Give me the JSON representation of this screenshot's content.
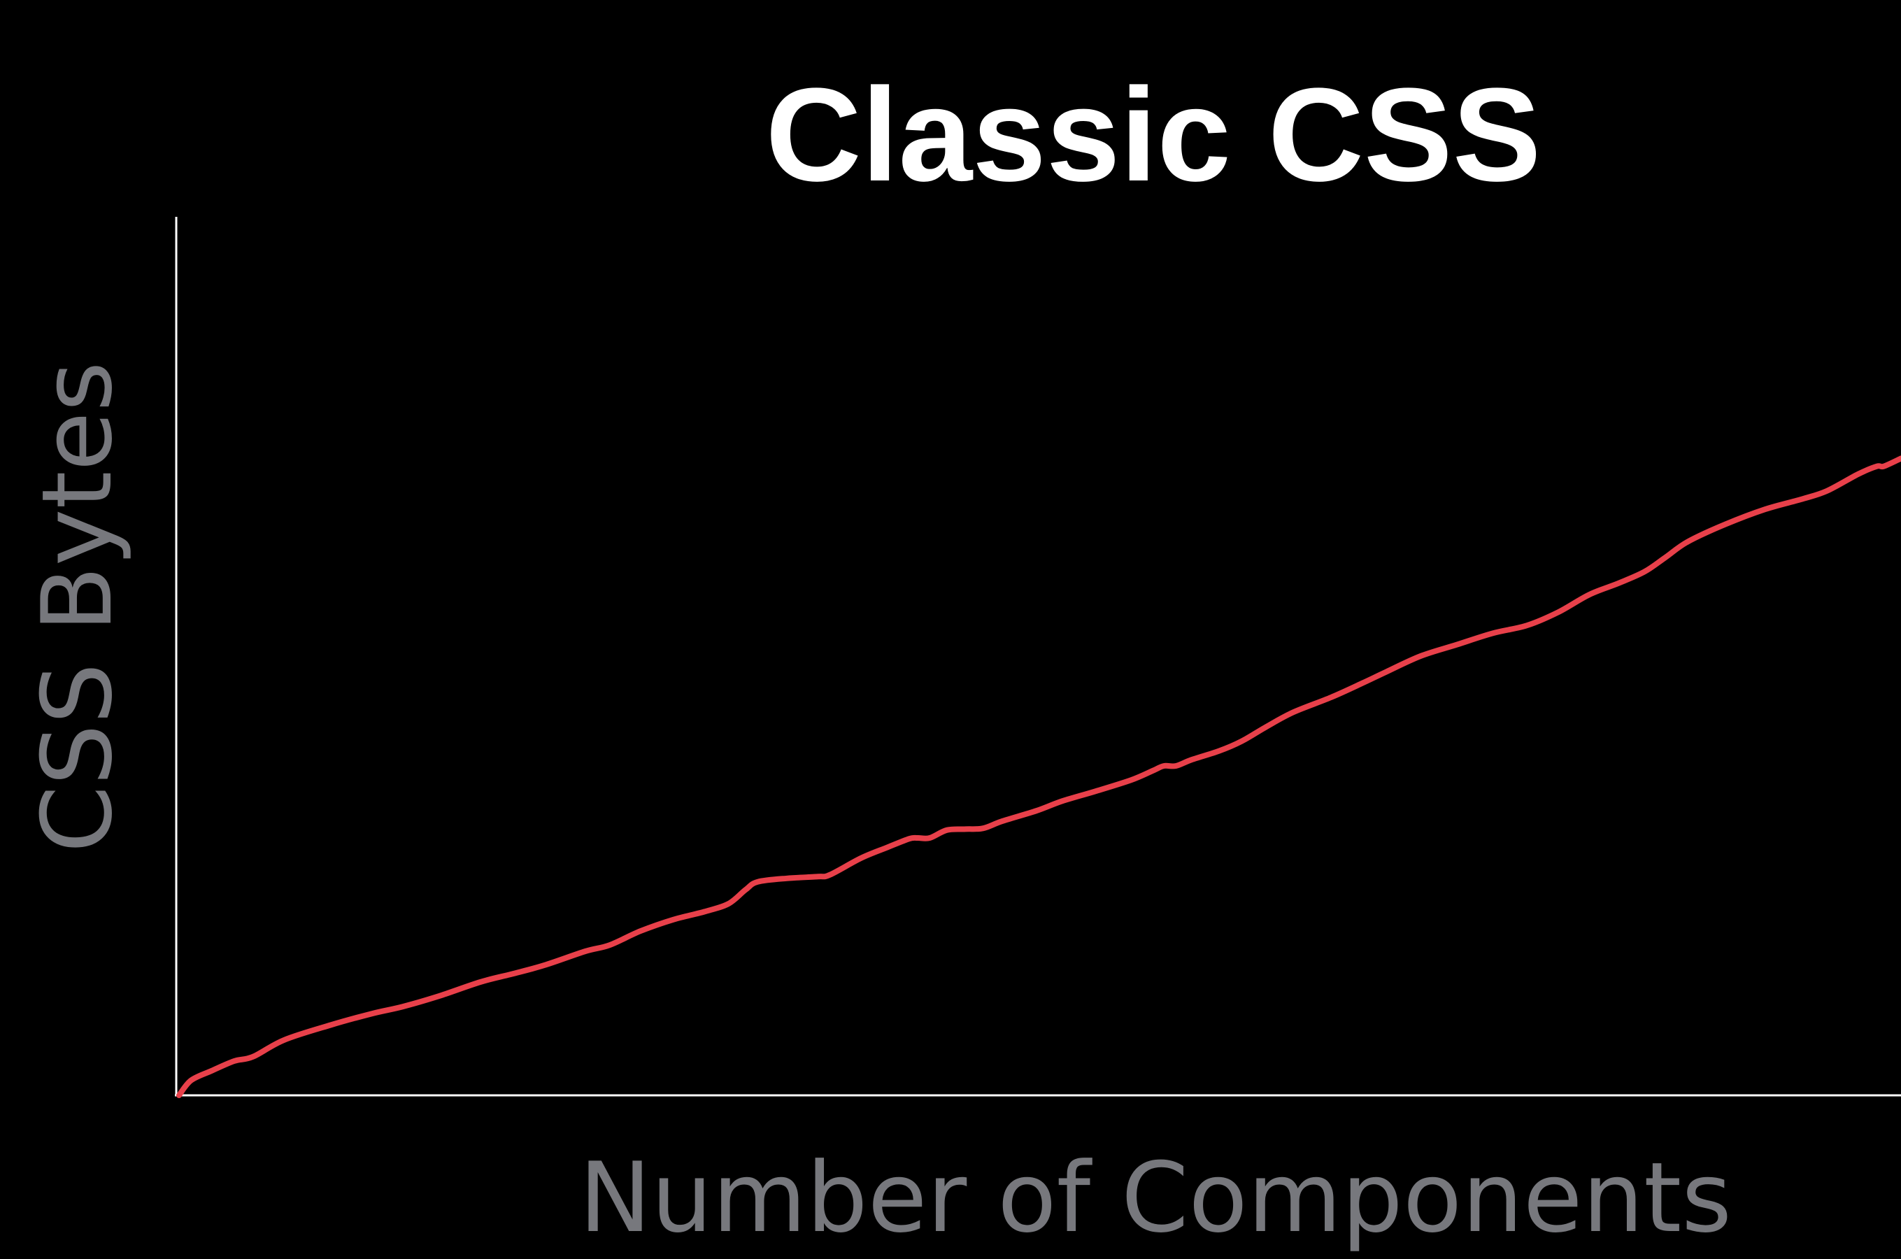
{
  "chart_data": {
    "type": "line",
    "title": "Classic CSS",
    "xlabel": "Number of Components",
    "ylabel": "CSS Bytes",
    "xlim": [
      0,
      100
    ],
    "ylim": [
      0,
      100
    ],
    "grid": false,
    "legend": "none",
    "tick_labels": "none",
    "series": [
      {
        "color": "#e8404a",
        "points": [
          [
            0.0,
            0.0
          ],
          [
            0.7,
            1.7
          ],
          [
            1.9,
            2.8
          ],
          [
            3.2,
            3.9
          ],
          [
            4.3,
            4.4
          ],
          [
            6.1,
            6.3
          ],
          [
            8.8,
            8.0
          ],
          [
            11.2,
            9.3
          ],
          [
            13.0,
            10.1
          ],
          [
            15.1,
            11.3
          ],
          [
            17.5,
            12.9
          ],
          [
            19.3,
            13.8
          ],
          [
            21.2,
            14.8
          ],
          [
            23.6,
            16.4
          ],
          [
            25.0,
            17.1
          ],
          [
            26.8,
            18.7
          ],
          [
            28.7,
            20.0
          ],
          [
            30.5,
            20.9
          ],
          [
            31.9,
            21.8
          ],
          [
            32.9,
            23.4
          ],
          [
            33.6,
            24.3
          ],
          [
            35.3,
            24.7
          ],
          [
            37.1,
            24.9
          ],
          [
            37.8,
            25.1
          ],
          [
            39.6,
            27.0
          ],
          [
            41.1,
            28.2
          ],
          [
            42.4,
            29.2
          ],
          [
            42.9,
            29.3
          ],
          [
            43.6,
            29.3
          ],
          [
            44.6,
            30.2
          ],
          [
            45.7,
            30.3
          ],
          [
            46.7,
            30.4
          ],
          [
            47.8,
            31.2
          ],
          [
            49.8,
            32.4
          ],
          [
            51.3,
            33.5
          ],
          [
            53.2,
            34.6
          ],
          [
            55.3,
            35.9
          ],
          [
            56.6,
            37.0
          ],
          [
            57.2,
            37.5
          ],
          [
            57.9,
            37.5
          ],
          [
            58.8,
            38.2
          ],
          [
            60.4,
            39.2
          ],
          [
            61.7,
            40.3
          ],
          [
            63.1,
            41.9
          ],
          [
            64.7,
            43.6
          ],
          [
            66.9,
            45.3
          ],
          [
            68.7,
            46.9
          ],
          [
            70.1,
            48.2
          ],
          [
            72.1,
            50.0
          ],
          [
            74.2,
            51.3
          ],
          [
            76.3,
            52.6
          ],
          [
            78.3,
            53.5
          ],
          [
            80.1,
            55.0
          ],
          [
            81.9,
            57.0
          ],
          [
            83.6,
            58.3
          ],
          [
            85.1,
            59.6
          ],
          [
            86.3,
            61.2
          ],
          [
            87.6,
            63.0
          ],
          [
            89.8,
            65.0
          ],
          [
            92.1,
            66.7
          ],
          [
            94.3,
            67.9
          ],
          [
            95.7,
            68.8
          ],
          [
            97.5,
            70.7
          ],
          [
            98.6,
            71.6
          ],
          [
            99.0,
            71.6
          ],
          [
            100.0,
            72.5
          ]
        ]
      }
    ]
  }
}
